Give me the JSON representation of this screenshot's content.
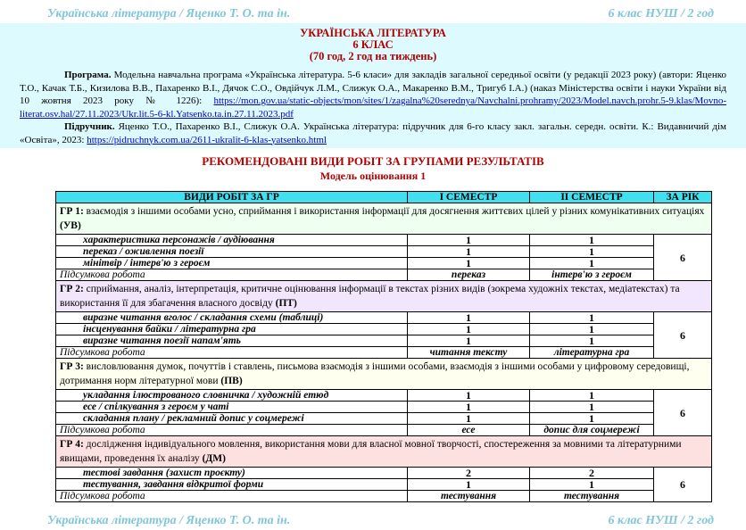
{
  "running_header": {
    "left": "Українська література / Яценко Т. О. та ін.",
    "right": "6 клас НУШ / 2 год"
  },
  "running_footer": {
    "left": "Українська література / Яценко Т. О. та ін.",
    "right": "6 клас НУШ / 2 год"
  },
  "title": {
    "line1": "УКРАЇНСЬКА ЛІТЕРАТУРА",
    "line2": "6 КЛАС",
    "line3": "(70 год, 2 год на тиждень)"
  },
  "program": {
    "label": "Програма.",
    "text": " Модельна навчальна програма «Українська література. 5-6 класи» для закладів загальної середньої освіти (у редакції 2023 року) (автори: Яценко Т.О., Качак Т.Б., Кизилова В.В., Пахаренко В.І., Дячок С.О., Овдійчук Л.М., Слижук О.А., Макаренко В.М., Тригуб І.А.) (наказ Міністерства освіти і науки України від 10 жовтня 2023 року № 1226): ",
    "link": "https://mon.gov.ua/static-objects/mon/sites/1/zagalna%20serednya/Navchalni.prohramy/2023/Model.navch.prohr.5-9.klas/Movno-literat.osv.hal/27.11.2023/Ukr.lit.5-6-kl.Yatsenko.ta.in.27.11.2023.pdf"
  },
  "textbook": {
    "label": "Підручник.",
    "text": " Яценко Т.О., Пахаренко В.І., Слижук О.А. Українська література: підручник для 6-го класу закл. загальн. середн. освіти. К.: Видавничий дім «Освіта», 2023: ",
    "link": "https://pidruchnyk.com.ua/2611-ukralit-6-klas-yatsenko.html"
  },
  "section": {
    "title": "РЕКОМЕНДОВАНІ ВИДИ РОБІТ ЗА ГРУПАМИ РЕЗУЛЬТАТІВ",
    "subtitle": "Модель оцінювання 1"
  },
  "table": {
    "headers": [
      "ВИДИ РОБІТ ЗА ГР",
      "І СЕМЕСТР",
      "ІІ СЕМЕСТР",
      "ЗА РІК"
    ],
    "summary_label": "Підсумкова робота",
    "groups": [
      {
        "label": "ГР 1:",
        "text": " взаємодія з іншими особами усно, сприймання і використання інформації для досягнення життєвих цілей у різних комунікативних ситуаціях ",
        "code": "(УВ)",
        "items": [
          [
            "характеристика персонажів / аудіювання",
            "1",
            "1"
          ],
          [
            "переказ / оживлення поезії",
            "1",
            "1"
          ],
          [
            "мінітвір / інтерв'ю з героєм",
            "1",
            "1"
          ]
        ],
        "summary": [
          "переказ",
          "інтерв'ю з героєм"
        ],
        "year": "6",
        "color": "#effff0"
      },
      {
        "label": "ГР 2:",
        "text": " сприймання, аналіз, інтерпретація, критичне оцінювання інформації в текстах різних видів (зокрема художніх текстах, медіатекстах) та використання її для збагачення власного досвіду ",
        "code": "(ПТ)",
        "items": [
          [
            "виразне читання вголос / складання схеми (таблиці)",
            "1",
            "1"
          ],
          [
            "інсценування байки / літературна гра",
            "1",
            "1"
          ],
          [
            "виразне читання поезії напам'ять",
            "1",
            "1"
          ]
        ],
        "summary": [
          "читання тексту",
          "літературна гра"
        ],
        "year": "6",
        "color": "#f1e6fb"
      },
      {
        "label": "ГР 3:",
        "text": " висловлювання думок, почуттів і ставлень, письмова взаємодія з іншими особами, взаємодія з іншими особами у цифровому середовищі, дотримання норм літературної мови ",
        "code": "(ПВ)",
        "items": [
          [
            "укладання ілюстрованого словничка / художній етюд",
            "1",
            "1"
          ],
          [
            "есе / спілкування з героєм у чаті",
            "1",
            "1"
          ],
          [
            "складання плану / рекламний допис у соцмережі",
            "1",
            "1"
          ]
        ],
        "summary": [
          "есе",
          "допис для соцмережі"
        ],
        "year": "6",
        "color": "#fffff0"
      },
      {
        "label": "ГР 4:",
        "text": " дослідження індивідуального мовлення, використання мови для власної мовної творчості, спостереження за мовними та літературними явищами, проведення їх аналізу ",
        "code": "(ДМ)",
        "items": [
          [
            "тестові завдання (захист проєкту)",
            "2",
            "2"
          ],
          [
            "тестування, завдання відкритої форми",
            "1",
            "1"
          ]
        ],
        "summary": [
          "тестування",
          "тестування"
        ],
        "year": "6",
        "color": "#fde0e0"
      }
    ]
  }
}
